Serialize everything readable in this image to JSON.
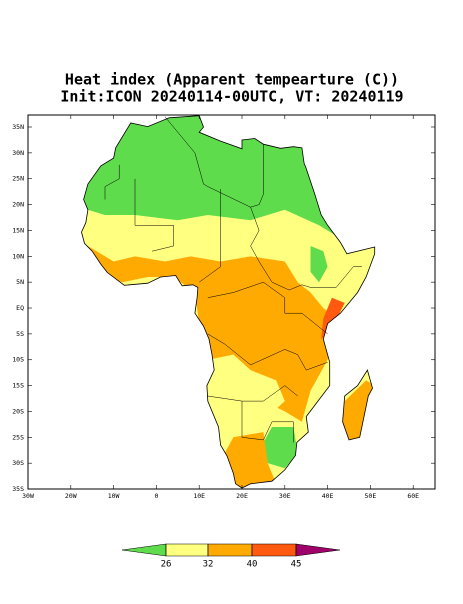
{
  "title": "Heat index (Apparent tempearture (C))",
  "subtitle": "Init:ICON 20240114-00UTC, VT: 20240119",
  "lat_labels": [
    "35N",
    "30N",
    "25N",
    "20N",
    "15N",
    "10N",
    "5N",
    "EQ",
    "5S",
    "10S",
    "15S",
    "20S",
    "25S",
    "30S",
    "35S"
  ],
  "lon_labels": [
    "30W",
    "20W",
    "10W",
    "0",
    "10E",
    "20E",
    "30E",
    "40E",
    "50E",
    "60E"
  ],
  "colorbar": {
    "levels": [
      26,
      32,
      40,
      45
    ],
    "colors": [
      "#5fdc4c",
      "#ffff80",
      "#ffaa00",
      "#ff5a10",
      "#a0006a"
    ]
  }
}
